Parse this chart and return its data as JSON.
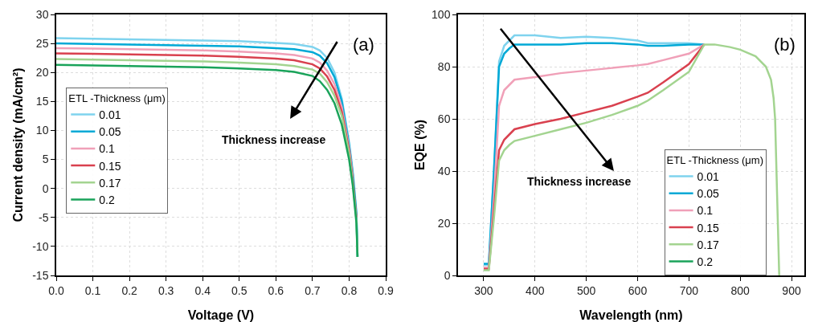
{
  "chart_data": [
    {
      "type": "line",
      "xlabel": "Voltage (V)",
      "ylabel": "Current density (mA/cm²)",
      "legend_title": "ETL -Thickness (μm)",
      "legend": "left",
      "grid": true,
      "marker": "none",
      "line_style": "solid",
      "annotations": [
        "(a)",
        "Thickness increase"
      ],
      "x": [
        0,
        0.1,
        0.2,
        0.3,
        0.4,
        0.5,
        0.6,
        0.65,
        0.7,
        0.72,
        0.74,
        0.76,
        0.78,
        0.8,
        0.81,
        0.82,
        0.823
      ],
      "xlim": [
        0,
        0.9
      ],
      "xticks": [
        {
          "value": 0,
          "label": "0.0"
        },
        0.1,
        0.2,
        0.3,
        0.4,
        0.5,
        0.6,
        0.7,
        0.8,
        0.9
      ],
      "ylim": [
        -15,
        30
      ],
      "yticks": [
        -15,
        -10,
        -5,
        0,
        5,
        10,
        15,
        20,
        25,
        30
      ],
      "series": [
        {
          "name": "0.01",
          "color": "#7fd3ee",
          "values": [
            25.9,
            25.8,
            25.7,
            25.6,
            25.5,
            25.4,
            25.1,
            24.9,
            24.4,
            23.8,
            22.5,
            20.0,
            15.5,
            8.0,
            3,
            -4,
            -11.8
          ]
        },
        {
          "name": "0.05",
          "color": "#00a9d6",
          "values": [
            25.0,
            24.9,
            24.8,
            24.7,
            24.6,
            24.5,
            24.2,
            24.0,
            23.5,
            22.9,
            21.6,
            19.2,
            15.0,
            7.5,
            2.5,
            -4.5,
            -11.8
          ]
        },
        {
          "name": "0.1",
          "color": "#f0a0b8",
          "values": [
            24.2,
            24.1,
            24.0,
            23.9,
            23.8,
            23.6,
            23.3,
            23.0,
            22.4,
            21.7,
            20.3,
            18.0,
            14.0,
            7.0,
            2,
            null,
            null
          ]
        },
        {
          "name": "0.15",
          "color": "#d9414f",
          "values": [
            23.3,
            23.2,
            23.1,
            23.0,
            22.9,
            22.7,
            22.4,
            22.1,
            21.4,
            20.7,
            19.3,
            17.0,
            13.2,
            6.5,
            1.5,
            -5,
            null
          ]
        },
        {
          "name": "0.17",
          "color": "#a3d490",
          "values": [
            22.3,
            22.2,
            22.1,
            22.0,
            21.9,
            21.7,
            21.4,
            21.1,
            20.5,
            19.8,
            18.3,
            16.0,
            12.5,
            6.0,
            1,
            -5.5,
            -11.8
          ]
        },
        {
          "name": "0.2",
          "color": "#1aa35a",
          "values": [
            21.3,
            21.2,
            21.1,
            21.0,
            20.9,
            20.7,
            20.4,
            20.1,
            19.4,
            18.5,
            17.0,
            14.7,
            11.0,
            5.0,
            0.5,
            -6,
            -11.8
          ]
        }
      ]
    },
    {
      "type": "line",
      "xlabel": "Wavelength (nm)",
      "ylabel": "EQE (%)",
      "legend_title": "ETL -Thickness (μm)",
      "legend": "bottom right",
      "grid": true,
      "marker": "none",
      "line_style": "solid",
      "annotations": [
        "(b)",
        "Thickness increase"
      ],
      "xlim": [
        250,
        925
      ],
      "xticks": [
        300,
        400,
        500,
        600,
        700,
        800,
        900
      ],
      "ylim": [
        0,
        100
      ],
      "yticks": [
        0,
        20,
        40,
        60,
        80,
        100
      ],
      "series": [
        {
          "name": "0.01",
          "color": "#7fd3ee",
          "x": [
            300,
            310,
            320,
            330,
            340,
            350,
            360,
            400,
            450,
            500,
            550,
            600,
            620,
            650,
            700,
            730
          ],
          "values": [
            4,
            4,
            40,
            82,
            88,
            90,
            92,
            92,
            91,
            91.5,
            91,
            90,
            89,
            89,
            89,
            88.5
          ]
        },
        {
          "name": "0.05",
          "color": "#00a9d6",
          "x": [
            300,
            310,
            320,
            330,
            340,
            350,
            360,
            400,
            450,
            500,
            550,
            600,
            620,
            650,
            700,
            730
          ],
          "values": [
            4.5,
            4.5,
            40,
            80,
            85,
            87,
            88.5,
            88.5,
            88.5,
            89,
            89,
            88.5,
            88,
            88,
            88.5,
            88.5
          ]
        },
        {
          "name": "0.1",
          "color": "#f0a0b8",
          "x": [
            300,
            310,
            320,
            330,
            340,
            350,
            360,
            400,
            450,
            500,
            550,
            600,
            620,
            650,
            700,
            730
          ],
          "values": [
            3,
            3,
            30,
            65,
            71,
            73,
            75,
            76,
            77.5,
            78.5,
            79.5,
            80.5,
            81,
            82.5,
            85,
            88.5
          ]
        },
        {
          "name": "0.15",
          "color": "#d9414f",
          "x": [
            300,
            310,
            320,
            330,
            340,
            350,
            360,
            400,
            450,
            500,
            550,
            600,
            620,
            650,
            700,
            730
          ],
          "values": [
            2.5,
            2.5,
            25,
            48,
            52,
            54,
            56,
            58,
            60,
            62.5,
            65,
            68.5,
            70,
            74,
            81,
            88.5
          ]
        },
        {
          "name": "0.17",
          "color": "#a3d490",
          "x": [
            300,
            310,
            320,
            330,
            340,
            350,
            360,
            400,
            450,
            500,
            550,
            600,
            620,
            650,
            700,
            730,
            750,
            780,
            800,
            830,
            850,
            860,
            865,
            868,
            872,
            876
          ],
          "values": [
            2,
            2,
            22,
            44,
            48,
            50,
            51.5,
            53.5,
            56,
            58.5,
            61.5,
            65,
            67,
            71,
            78,
            88.5,
            88.5,
            87.5,
            86.5,
            84,
            80,
            75,
            68,
            60,
            30,
            0
          ]
        },
        {
          "name": "0.2",
          "color": "#1aa35a"
        }
      ]
    }
  ]
}
